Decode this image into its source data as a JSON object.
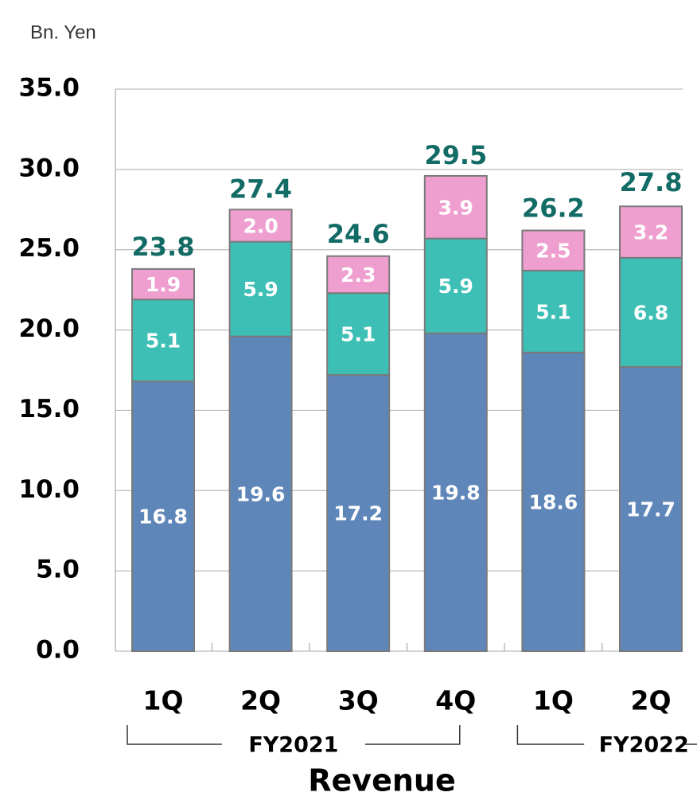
{
  "chart_data": {
    "type": "stacked_bar",
    "unit_label": "Bn. Yen",
    "x_label": "Revenue",
    "categories": [
      "1Q",
      "2Q",
      "3Q",
      "4Q",
      "1Q",
      "2Q"
    ],
    "groups": [
      {
        "label": "FY2021",
        "from": 0,
        "to": 3
      },
      {
        "label": "FY2022",
        "from": 4,
        "to": 5
      }
    ],
    "series": [
      {
        "color": "#5f86b8",
        "values": [
          16.8,
          19.6,
          17.2,
          19.8,
          18.6,
          17.7
        ]
      },
      {
        "color": "#3dbfb6",
        "values": [
          5.1,
          5.9,
          5.1,
          5.9,
          5.1,
          6.8
        ]
      },
      {
        "color": "#ee9ecf",
        "values": [
          1.9,
          2,
          2.3,
          3.9,
          2.5,
          3.2
        ],
        "value_labels": [
          "1.9",
          "2.0",
          "2.3",
          "3.9",
          "2.5",
          "3.2"
        ]
      }
    ],
    "totals": [
      23.8,
      27.4,
      24.6,
      29.5,
      26.2,
      27.8
    ],
    "totals_color": "#136b66",
    "ylim": [
      0,
      35
    ],
    "yticks": [
      {
        "value": 0,
        "label": "0.0"
      },
      {
        "value": 5,
        "label": "5.0"
      },
      {
        "value": 10,
        "label": "10.0"
      },
      {
        "value": 15,
        "label": "15.0"
      },
      {
        "value": 20,
        "label": "20.0"
      },
      {
        "value": 25,
        "label": "25.0"
      },
      {
        "value": 30,
        "label": "30.0"
      },
      {
        "value": 35,
        "label": "35.0"
      }
    ],
    "grid": true
  }
}
